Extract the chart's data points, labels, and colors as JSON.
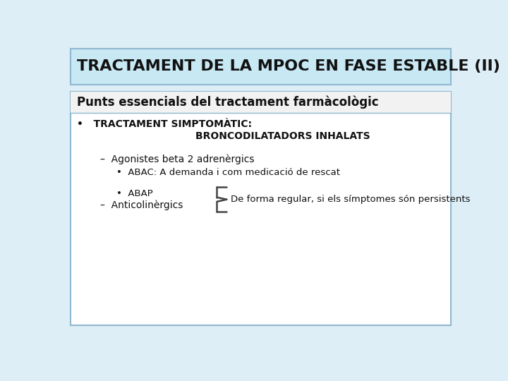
{
  "title": "TRACTAMENT DE LA MPOC EN FASE ESTABLE (II)",
  "title_bg": "#c8e8f4",
  "title_border": "#90b8d0",
  "title_fontsize": 16,
  "title_color": "#111111",
  "content_bg": "#ffffff",
  "content_border": "#90b8d0",
  "section_header": "Punts essencials del tractament farmàcològic",
  "section_header_fontsize": 12,
  "section_header_color": "#111111",
  "line1_text": "•   TRACTAMENT SIMPTOMÀTIC:",
  "line2_text": "BRONCODILATADORS INHALATS",
  "dash1_text": "–  Agonistes beta 2 adrenèrgics",
  "bullet2_text": "•  ABAC: A demanda i com medicació de rescat",
  "bullet3_text": "•  ABAP",
  "dash2_text": "–  Anticolinèrgics",
  "brace_text": "De forma regular, si els símptomes són persistents",
  "body_fontsize": 10,
  "bg_color": "#ddeef6"
}
